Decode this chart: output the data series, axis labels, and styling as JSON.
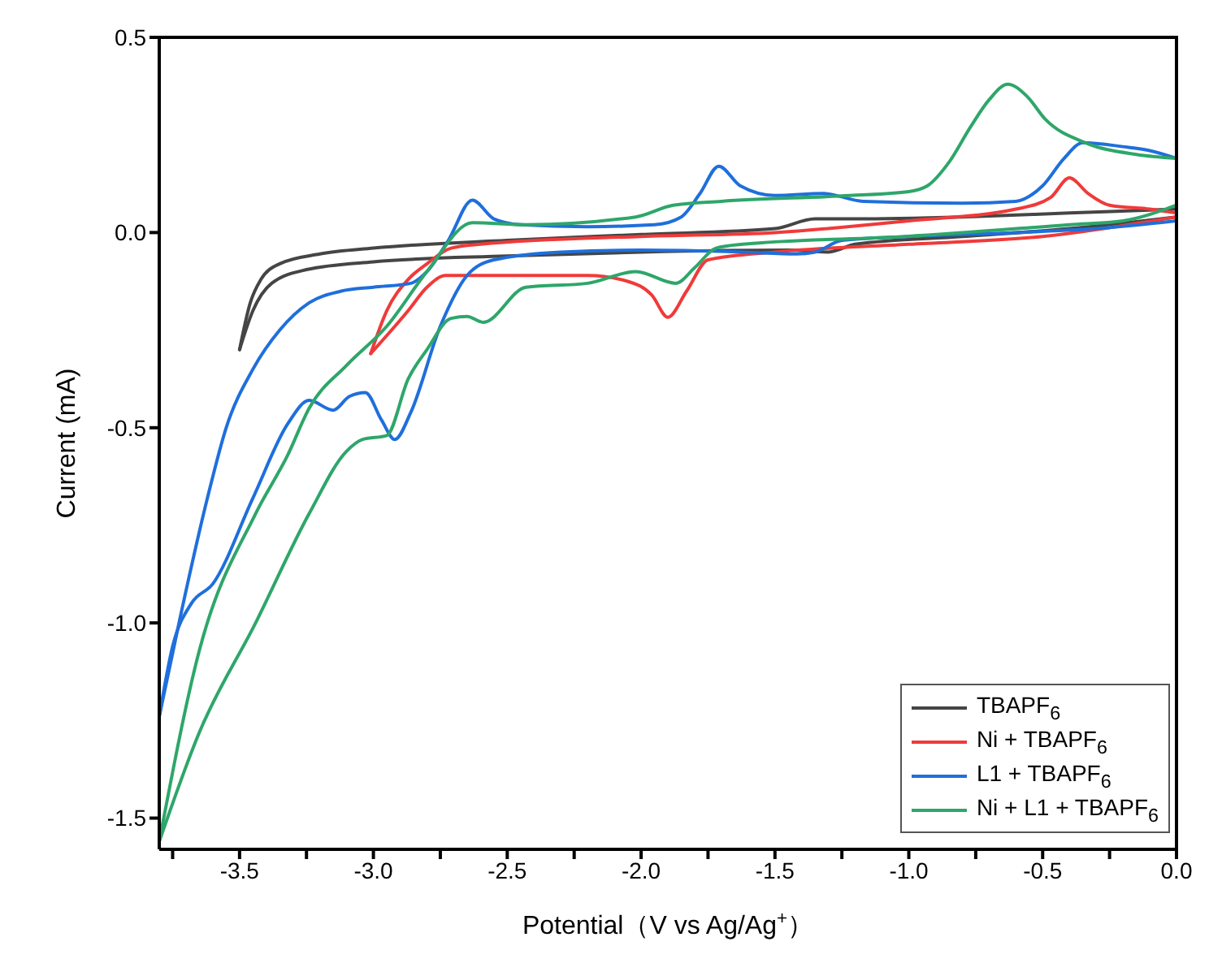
{
  "chart_data": {
    "type": "line",
    "xlabel": "Potential（V vs Ag/Ag$^{+}$）",
    "ylabel": "Current (mA)",
    "xlim": [
      -3.8,
      0
    ],
    "ylim": [
      -1.58,
      0.5
    ],
    "xticks": [
      {
        "value": -3.75,
        "label": null
      },
      -3.5,
      {
        "value": -3.25,
        "label": null
      },
      {
        "value": -3,
        "label": "-3.0"
      },
      {
        "value": -2.75,
        "label": null
      },
      -2.5,
      {
        "value": -2.25,
        "label": null
      },
      {
        "value": -2,
        "label": "-2.0"
      },
      {
        "value": -1.75,
        "label": null
      },
      -1.5,
      {
        "value": -1.25,
        "label": null
      },
      {
        "value": -1,
        "label": "-1.0"
      },
      {
        "value": -0.75,
        "label": null
      },
      -0.5,
      {
        "value": -0.25,
        "label": null
      },
      {
        "value": 0,
        "label": "0.0"
      }
    ],
    "yticks": [
      -1.5,
      {
        "value": -1,
        "label": "-1.0"
      },
      -0.5,
      {
        "value": 0,
        "label": "0.0"
      },
      0.5
    ],
    "grid": false,
    "legend": "bottom right",
    "marker": "none",
    "line_style": "solid",
    "series": [
      {
        "name": "TBAPF$_{6}$",
        "color": "#454545",
        "x": [
          -3.5,
          -3.46,
          -3.42,
          -3.35,
          -3.2,
          -3.0,
          -2.5,
          -2.0,
          -1.5,
          -1.35,
          -1.2,
          -0.8,
          -0.4,
          0
        ],
        "values": [
          -0.3,
          -0.18,
          -0.12,
          -0.08,
          -0.055,
          -0.04,
          -0.02,
          -0.005,
          0.01,
          0.035,
          0.035,
          0.04,
          0.05,
          0.06
        ]
      },
      {
        "color": "#454545",
        "x": [
          -3.5,
          -3.45,
          -3.38,
          -3.25,
          -3.0,
          -2.5,
          -2.0,
          -1.45,
          -1.3,
          -1.2,
          -0.8,
          -0.4,
          0
        ],
        "values": [
          -0.3,
          -0.2,
          -0.13,
          -0.095,
          -0.075,
          -0.06,
          -0.05,
          -0.045,
          -0.05,
          -0.03,
          -0.01,
          0.01,
          0.04
        ]
      },
      {
        "name": "Ni + TBAPF$_{6}$",
        "color": "#f03a3a",
        "x": [
          -3.01,
          -2.95,
          -2.87,
          -2.8,
          -2.71,
          -2.6,
          -2.0,
          -1.5,
          -1.0,
          -0.6,
          -0.47,
          -0.4,
          -0.33,
          -0.25,
          -0.1,
          0
        ],
        "values": [
          -0.31,
          -0.2,
          -0.12,
          -0.08,
          -0.04,
          -0.03,
          -0.01,
          0.0,
          0.03,
          0.06,
          0.09,
          0.14,
          0.1,
          0.07,
          0.06,
          0.05
        ]
      },
      {
        "color": "#f03a3a",
        "x": [
          -3.01,
          -2.87,
          -2.8,
          -2.73,
          -2.5,
          -2.2,
          -2.05,
          -1.96,
          -1.9,
          -1.83,
          -1.75,
          -1.5,
          -1.0,
          -0.5,
          0
        ],
        "values": [
          -0.31,
          -0.2,
          -0.14,
          -0.11,
          -0.11,
          -0.11,
          -0.125,
          -0.16,
          -0.217,
          -0.15,
          -0.07,
          -0.05,
          -0.03,
          -0.01,
          0.04
        ]
      },
      {
        "name": "L1 + TBAPF$_{6}$",
        "color": "#1f6fdc",
        "x": [
          -3.8,
          -3.72,
          -3.62,
          -3.55,
          -3.45,
          -3.35,
          -3.24,
          -3.12,
          -3.0,
          -2.86,
          -2.8,
          -2.72,
          -2.63,
          -2.55,
          -2.45,
          -2.2,
          -1.95,
          -1.85,
          -1.78,
          -1.71,
          -1.63,
          -1.5,
          -1.32,
          -1.17,
          -0.8,
          -0.6,
          -0.5,
          -0.42,
          -0.35,
          -0.2,
          -0.1,
          0
        ],
        "values": [
          -1.24,
          -0.98,
          -0.68,
          -0.5,
          -0.35,
          -0.25,
          -0.18,
          -0.15,
          -0.14,
          -0.13,
          -0.1,
          -0.02,
          0.083,
          0.035,
          0.02,
          0.015,
          0.02,
          0.04,
          0.1,
          0.17,
          0.12,
          0.095,
          0.1,
          0.08,
          0.075,
          0.08,
          0.12,
          0.19,
          0.23,
          0.22,
          0.21,
          0.19
        ]
      },
      {
        "color": "#1f6fdc",
        "x": [
          -3.8,
          -3.75,
          -3.68,
          -3.6,
          -3.45,
          -3.32,
          -3.24,
          -3.15,
          -3.09,
          -3.03,
          -2.97,
          -2.92,
          -2.86,
          -2.75,
          -2.65,
          -2.55,
          -2.3,
          -2.0,
          -1.62,
          -1.42,
          -1.35,
          -1.25,
          -1.0,
          -0.6,
          -0.3,
          0
        ],
        "values": [
          -1.24,
          -1.06,
          -0.95,
          -0.9,
          -0.68,
          -0.49,
          -0.43,
          -0.455,
          -0.42,
          -0.41,
          -0.48,
          -0.53,
          -0.46,
          -0.24,
          -0.11,
          -0.07,
          -0.05,
          -0.045,
          -0.05,
          -0.055,
          -0.05,
          -0.02,
          -0.01,
          0.0,
          0.01,
          0.03
        ]
      },
      {
        "name": "Ni + L1 + TBAPF$_{6}$",
        "color": "#2ea66a",
        "x": [
          -3.8,
          -3.65,
          -3.44,
          -3.32,
          -3.24,
          -3.1,
          -2.95,
          -2.8,
          -2.63,
          -2.43,
          -2.02,
          -1.88,
          -1.7,
          -1.22,
          -1.0,
          -0.93,
          -0.85,
          -0.77,
          -0.7,
          -0.63,
          -0.56,
          -0.49,
          -0.34,
          -0.15,
          0
        ],
        "values": [
          -1.56,
          -1.07,
          -0.72,
          -0.57,
          -0.45,
          -0.34,
          -0.24,
          -0.1,
          0.025,
          0.02,
          0.04,
          0.07,
          0.08,
          0.095,
          0.105,
          0.12,
          0.18,
          0.27,
          0.34,
          0.38,
          0.35,
          0.29,
          0.23,
          0.2,
          0.19
        ]
      },
      {
        "color": "#2ea66a",
        "x": [
          -3.8,
          -3.65,
          -3.44,
          -3.24,
          -3.1,
          -3.04,
          -2.95,
          -2.87,
          -2.8,
          -2.71,
          -2.65,
          -2.59,
          -2.43,
          -2.2,
          -2.02,
          -1.87,
          -1.8,
          -1.72,
          -1.62,
          -1.01,
          -0.4,
          -0.2,
          0
        ],
        "values": [
          -1.56,
          -1.28,
          -1.0,
          -0.72,
          -0.56,
          -0.53,
          -0.52,
          -0.375,
          -0.3,
          -0.22,
          -0.215,
          -0.23,
          -0.14,
          -0.13,
          -0.1,
          -0.13,
          -0.09,
          -0.04,
          -0.03,
          -0.01,
          0.02,
          0.03,
          0.07
        ]
      }
    ]
  }
}
